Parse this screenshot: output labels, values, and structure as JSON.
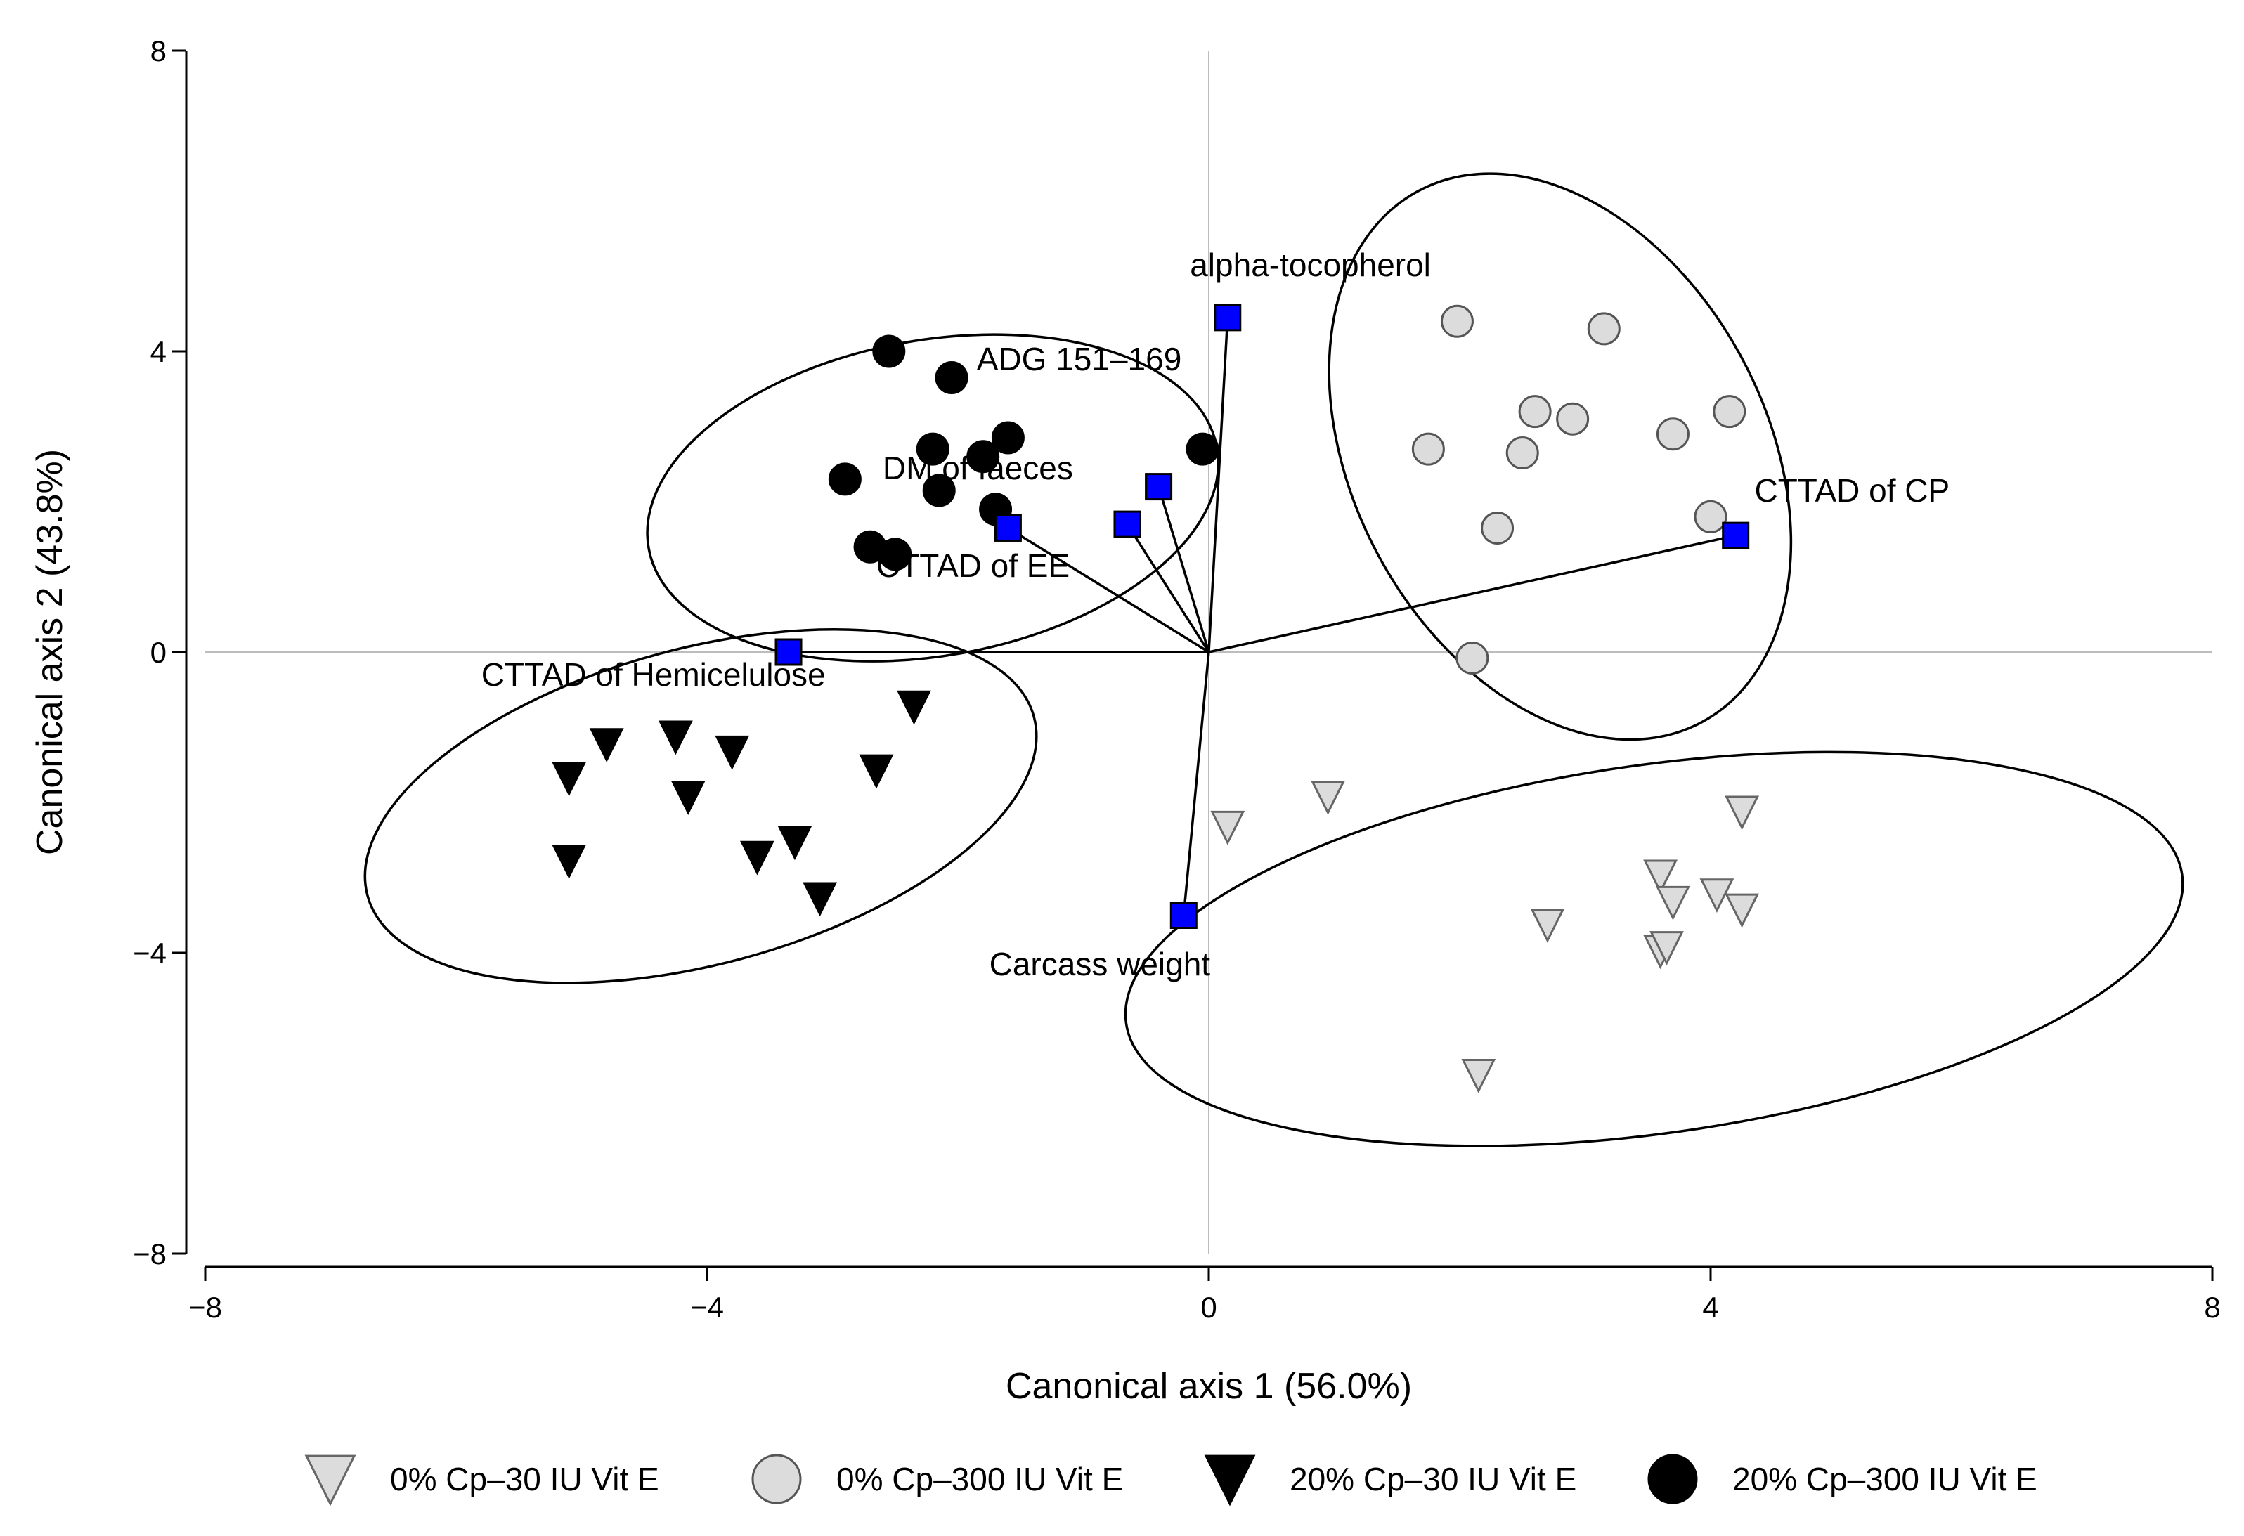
{
  "chart_data": {
    "type": "scatter",
    "title": "",
    "xlabel": "Canonical axis 1 (56.0%)",
    "ylabel": "Canonical axis 2 (43.8%)",
    "xlim": [
      -8,
      8
    ],
    "ylim": [
      -8,
      8
    ],
    "xticks": [
      -8,
      -4,
      0,
      4,
      8
    ],
    "yticks": [
      -8,
      -4,
      0,
      4,
      8
    ],
    "xtick_labels": [
      "−8",
      "−4",
      "0",
      "4",
      "8"
    ],
    "ytick_labels": [
      "−8",
      "−4",
      "0",
      "4",
      "8"
    ],
    "grid": false,
    "series": [
      {
        "name": "0% Cp–30 IU Vit E",
        "marker": "triangle-down",
        "fill": "#dcdcdc",
        "points": [
          [
            0.15,
            -2.3
          ],
          [
            0.95,
            -1.9
          ],
          [
            2.7,
            -3.6
          ],
          [
            2.15,
            -5.6
          ],
          [
            3.6,
            -2.95
          ],
          [
            3.7,
            -3.3
          ],
          [
            3.6,
            -3.95
          ],
          [
            3.65,
            -3.9
          ],
          [
            4.05,
            -3.2
          ],
          [
            4.25,
            -2.1
          ],
          [
            4.25,
            -3.4
          ]
        ]
      },
      {
        "name": "0% Cp–300 IU Vit E",
        "marker": "circle",
        "fill": "#dcdcdc",
        "points": [
          [
            1.98,
            4.4
          ],
          [
            3.15,
            4.3
          ],
          [
            2.6,
            3.2
          ],
          [
            2.9,
            3.1
          ],
          [
            3.7,
            2.9
          ],
          [
            4.15,
            3.2
          ],
          [
            1.75,
            2.7
          ],
          [
            2.5,
            2.65
          ],
          [
            2.3,
            1.65
          ],
          [
            4.0,
            1.8
          ],
          [
            2.1,
            -0.08
          ]
        ]
      },
      {
        "name": "20% Cp–30 IU Vit E",
        "marker": "triangle-down",
        "fill": "#000000",
        "points": [
          [
            -4.8,
            -1.2
          ],
          [
            -4.25,
            -1.1
          ],
          [
            -3.8,
            -1.3
          ],
          [
            -2.35,
            -0.7
          ],
          [
            -5.1,
            -1.65
          ],
          [
            -4.15,
            -1.9
          ],
          [
            -2.65,
            -1.55
          ],
          [
            -5.1,
            -2.75
          ],
          [
            -3.6,
            -2.7
          ],
          [
            -3.3,
            -2.5
          ],
          [
            -3.1,
            -3.25
          ]
        ]
      },
      {
        "name": "20% Cp–300 IU Vit E",
        "marker": "circle",
        "fill": "#000000",
        "points": [
          [
            -2.55,
            4.0
          ],
          [
            -2.05,
            3.65
          ],
          [
            -1.6,
            2.85
          ],
          [
            -2.2,
            2.7
          ],
          [
            -1.8,
            2.6
          ],
          [
            -0.05,
            2.7
          ],
          [
            -2.9,
            2.3
          ],
          [
            -2.15,
            2.15
          ],
          [
            -1.7,
            1.9
          ],
          [
            -2.7,
            1.4
          ],
          [
            -2.5,
            1.3
          ]
        ]
      }
    ],
    "vectors": {
      "name": "Variables",
      "marker": "square",
      "fill": "#0000ff",
      "origin": [
        0,
        0
      ],
      "items": [
        {
          "label": "alpha-tocopherol",
          "x": 0.15,
          "y": 4.45
        },
        {
          "label": "",
          "x": -0.4,
          "y": 2.2
        },
        {
          "label": "",
          "x": -0.65,
          "y": 1.7
        },
        {
          "label": "",
          "x": -1.6,
          "y": 1.65
        },
        {
          "label": "CTTAD of  CP",
          "x": 4.2,
          "y": 1.55
        },
        {
          "label": "",
          "x": -3.35,
          "y": 0.0
        },
        {
          "label": "Carcass weight",
          "x": -0.2,
          "y": -3.5
        }
      ]
    },
    "annotations": [
      {
        "text": "alpha-tocopherol",
        "x": -0.15,
        "y": 5.0
      },
      {
        "text": "ADG 151–169",
        "x": -1.85,
        "y": 3.75
      },
      {
        "text": "DM of faeces",
        "x": -2.6,
        "y": 2.3
      },
      {
        "text": "CTTAD of EE",
        "x": -2.65,
        "y": 1.0
      },
      {
        "text": "CTTAD of  CP",
        "x": 4.35,
        "y": 2.0
      },
      {
        "text": "CTTAD of Hemicelulose",
        "x": -5.8,
        "y": -0.45
      },
      {
        "text": "Carcass weight",
        "x": -1.75,
        "y": -4.3
      }
    ],
    "ellipses": [
      {
        "group": "20% Cp–300 IU Vit E",
        "cx": -2.2,
        "cy": 2.05,
        "rx": 2.3,
        "ry": 2.1,
        "rotation_deg": -10
      },
      {
        "group": "0% Cp–300 IU Vit E",
        "cx": 2.8,
        "cy": 2.6,
        "rx": 2.4,
        "ry": 2.75,
        "rotation_deg": 62
      },
      {
        "group": "20% Cp–30 IU Vit E",
        "cx": -4.05,
        "cy": -2.05,
        "rx": 2.75,
        "ry": 2.1,
        "rotation_deg": -15
      },
      {
        "group": "0% Cp–30 IU Vit E",
        "cx": 3.55,
        "cy": -3.95,
        "rx": 4.25,
        "ry": 2.45,
        "rotation_deg": -8
      }
    ],
    "legend": {
      "position": "bottom",
      "items": [
        {
          "label": "0% Cp–30 IU Vit E",
          "marker": "triangle-down",
          "fill": "#dcdcdc"
        },
        {
          "label": "0% Cp–300 IU Vit E",
          "marker": "circle",
          "fill": "#dcdcdc"
        },
        {
          "label": "20% Cp–30 IU Vit E",
          "marker": "triangle-down",
          "fill": "#000000"
        },
        {
          "label": "20% Cp–300 IU Vit E",
          "marker": "circle",
          "fill": "#000000"
        }
      ]
    }
  }
}
